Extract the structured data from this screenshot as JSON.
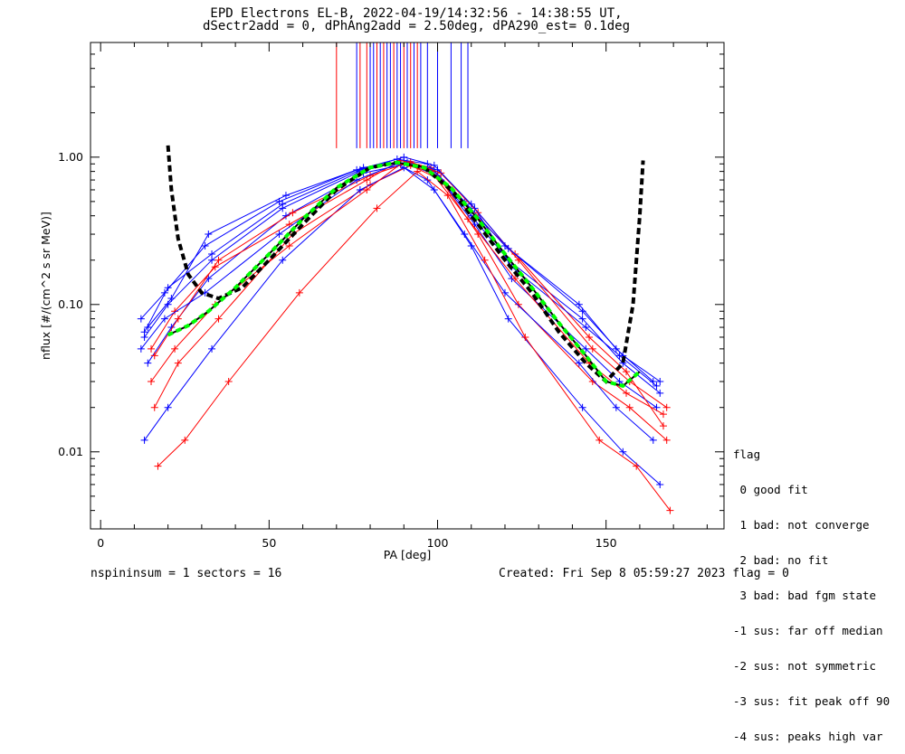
{
  "title_line1": "EPD Electrons EL-B, 2022-04-19/14:32:56 - 14:38:55 UT,",
  "title_line2": "dSectr2add = 0, dPhAng2add = 2.50deg, dPA290_est=   0.1deg",
  "footer_left": "nspininsum =  1  sectors = 16",
  "footer_right": "Created: Fri Sep  8 05:59:27 2023   flag = 0",
  "legend": {
    "title": "flag",
    "items": [
      " 0 good fit",
      " 1 bad: not converge",
      " 2 bad: no fit",
      " 3 bad: bad fgm state",
      "-1 sus: far off median",
      "-2 sus: not symmetric",
      "-3 sus: fit peak off 90",
      "-4 sus: peaks high var"
    ]
  },
  "colors": {
    "red_series": "#ff0000",
    "blue_series": "#0000ff",
    "black_fit": "#000000",
    "green_fit": "#00ff00"
  },
  "chart_data": {
    "type": "line",
    "xlabel": "PA [deg]",
    "ylabel": "nflux [#/(cm^2 s sr MeV)]",
    "xlim": [
      -3,
      185
    ],
    "ylim": [
      0.003,
      6.0
    ],
    "yscale": "log",
    "x_ticks": [
      0,
      50,
      100,
      150
    ],
    "x_tick_labels": [
      "0",
      "50",
      "100",
      "150"
    ],
    "y_ticks": [
      0.01,
      0.1,
      1.0
    ],
    "y_tick_labels": [
      "0.01",
      "0.10",
      "1.00"
    ],
    "legend_position": "outside-bottom-right",
    "series": [
      {
        "color": "blue",
        "x": [
          13,
          20,
          33,
          54,
          77,
          90,
          99,
          110,
          121,
          143,
          155,
          166
        ],
        "y": [
          0.06,
          0.1,
          0.2,
          0.45,
          0.8,
          0.95,
          0.8,
          0.4,
          0.2,
          0.08,
          0.04,
          0.025
        ]
      },
      {
        "color": "blue",
        "x": [
          14,
          21,
          32,
          55,
          78,
          91,
          100,
          111,
          122,
          144,
          154,
          165
        ],
        "y": [
          0.04,
          0.07,
          0.15,
          0.4,
          0.78,
          0.9,
          0.75,
          0.35,
          0.15,
          0.05,
          0.03,
          0.02
        ]
      },
      {
        "color": "red",
        "x": [
          15,
          22,
          34,
          56,
          79,
          89,
          98,
          109,
          123,
          145,
          156,
          167
        ],
        "y": [
          0.05,
          0.09,
          0.18,
          0.35,
          0.7,
          0.95,
          0.85,
          0.45,
          0.22,
          0.06,
          0.035,
          0.015
        ]
      },
      {
        "color": "red",
        "x": [
          16,
          23,
          35,
          57,
          80,
          92,
          101,
          112,
          124,
          146,
          157,
          168
        ],
        "y": [
          0.02,
          0.04,
          0.08,
          0.3,
          0.65,
          0.88,
          0.7,
          0.3,
          0.1,
          0.03,
          0.02,
          0.012
        ]
      },
      {
        "color": "blue",
        "x": [
          12,
          19,
          31,
          53,
          76,
          88,
          97,
          108,
          120,
          142,
          153,
          164
        ],
        "y": [
          0.08,
          0.12,
          0.25,
          0.5,
          0.82,
          0.97,
          0.9,
          0.5,
          0.25,
          0.1,
          0.05,
          0.03
        ]
      },
      {
        "color": "blue",
        "x": [
          13,
          20,
          33,
          54,
          77,
          90,
          99,
          110,
          121,
          143,
          155,
          166
        ],
        "y": [
          0.012,
          0.02,
          0.05,
          0.2,
          0.6,
          0.85,
          0.6,
          0.25,
          0.08,
          0.02,
          0.01,
          0.006
        ]
      },
      {
        "color": "red",
        "x": [
          15,
          22,
          34,
          56,
          79,
          89,
          98,
          109,
          123,
          145,
          156,
          167
        ],
        "y": [
          0.03,
          0.05,
          0.1,
          0.25,
          0.6,
          0.9,
          0.8,
          0.38,
          0.15,
          0.04,
          0.025,
          0.018
        ]
      },
      {
        "color": "blue",
        "x": [
          14,
          21,
          32,
          55,
          78,
          91,
          100,
          111,
          122,
          144,
          154,
          165
        ],
        "y": [
          0.07,
          0.11,
          0.3,
          0.55,
          0.85,
          0.92,
          0.82,
          0.45,
          0.18,
          0.07,
          0.045,
          0.028
        ]
      },
      {
        "color": "red",
        "x": [
          16,
          23,
          35,
          57,
          80,
          92,
          101,
          112,
          124,
          146,
          157,
          168
        ],
        "y": [
          0.045,
          0.08,
          0.2,
          0.42,
          0.75,
          0.93,
          0.78,
          0.42,
          0.2,
          0.05,
          0.03,
          0.02
        ]
      },
      {
        "color": "blue",
        "x": [
          12,
          19,
          31,
          53,
          76,
          88,
          97,
          108,
          120,
          142,
          153,
          164
        ],
        "y": [
          0.05,
          0.08,
          0.12,
          0.3,
          0.7,
          0.9,
          0.7,
          0.3,
          0.12,
          0.04,
          0.02,
          0.012
        ]
      },
      {
        "color": "red",
        "x": [
          17,
          25,
          38,
          59,
          82,
          94,
          103,
          114,
          126,
          148,
          159,
          169
        ],
        "y": [
          0.008,
          0.012,
          0.03,
          0.12,
          0.45,
          0.8,
          0.55,
          0.2,
          0.06,
          0.012,
          0.008,
          0.004
        ]
      },
      {
        "color": "blue",
        "x": [
          13,
          20,
          33,
          54,
          77,
          90,
          99,
          110,
          121,
          143,
          155,
          166
        ],
        "y": [
          0.065,
          0.13,
          0.22,
          0.48,
          0.82,
          1.0,
          0.88,
          0.48,
          0.24,
          0.09,
          0.045,
          0.03
        ]
      }
    ],
    "fit_curves": [
      {
        "style": "black-dashed",
        "x": [
          20,
          21,
          23,
          26,
          30,
          35,
          42,
          50,
          60,
          70,
          80,
          88,
          96,
          104,
          112,
          120,
          128,
          136,
          144,
          150,
          155,
          158,
          160,
          161
        ],
        "y": [
          1.2,
          0.6,
          0.28,
          0.16,
          0.12,
          0.11,
          0.13,
          0.2,
          0.35,
          0.6,
          0.85,
          0.92,
          0.85,
          0.6,
          0.35,
          0.2,
          0.12,
          0.065,
          0.04,
          0.03,
          0.04,
          0.1,
          0.4,
          0.95
        ]
      },
      {
        "style": "green-dashed",
        "x": [
          20,
          26,
          32,
          40,
          50,
          60,
          70,
          80,
          88,
          96,
          104,
          112,
          120,
          128,
          136,
          144,
          150,
          155,
          160
        ],
        "y": [
          0.062,
          0.072,
          0.09,
          0.13,
          0.22,
          0.38,
          0.62,
          0.85,
          0.92,
          0.85,
          0.62,
          0.38,
          0.22,
          0.13,
          0.075,
          0.045,
          0.03,
          0.028,
          0.035
        ]
      }
    ],
    "vertical_lines": {
      "red_x": [
        70,
        77,
        79,
        82,
        84,
        87,
        90,
        92,
        94
      ],
      "blue_x": [
        76,
        80,
        81,
        83,
        85,
        86,
        88,
        89,
        91,
        93,
        95,
        97,
        100,
        104,
        107,
        109
      ]
    }
  }
}
